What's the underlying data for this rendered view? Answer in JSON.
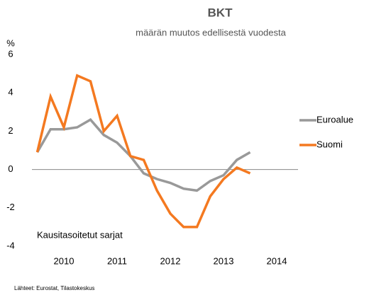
{
  "chart_data": {
    "type": "line",
    "title": "BKT",
    "subtitle": "määrän muutos edellisestä vuodesta",
    "y_label": "%",
    "annotation": "Kausitasoitetut sarjat",
    "source": "Lähteet: Eurostat, Tilastokeskus",
    "x": [
      2009.5,
      2009.75,
      2010,
      2010.25,
      2010.5,
      2010.75,
      2011,
      2011.25,
      2011.5,
      2011.75,
      2012,
      2012.25,
      2012.5,
      2012.75,
      2013,
      2013.25,
      2013.5
    ],
    "series": [
      {
        "name": "Euroalue",
        "color": "#999999",
        "values": [
          0.9,
          2.1,
          2.1,
          2.2,
          2.6,
          1.8,
          1.4,
          0.7,
          -0.2,
          -0.5,
          -0.7,
          -1.0,
          -1.1,
          -0.6,
          -0.3,
          0.5,
          0.9
        ]
      },
      {
        "name": "Suomi",
        "color": "#f47920",
        "values": [
          0.9,
          3.8,
          2.2,
          4.9,
          4.6,
          2.0,
          2.8,
          0.7,
          0.5,
          -1.1,
          -2.3,
          -3.0,
          -3.0,
          -1.4,
          -0.5,
          0.1,
          -0.2
        ]
      }
    ],
    "xlim": [
      2009.4,
      2014.4
    ],
    "xticks": [
      2010,
      2011,
      2012,
      2013,
      2014
    ],
    "ylim": [
      -4,
      6
    ],
    "yticks": [
      -4,
      -2,
      0,
      2,
      4,
      6
    ],
    "legend": "right"
  }
}
